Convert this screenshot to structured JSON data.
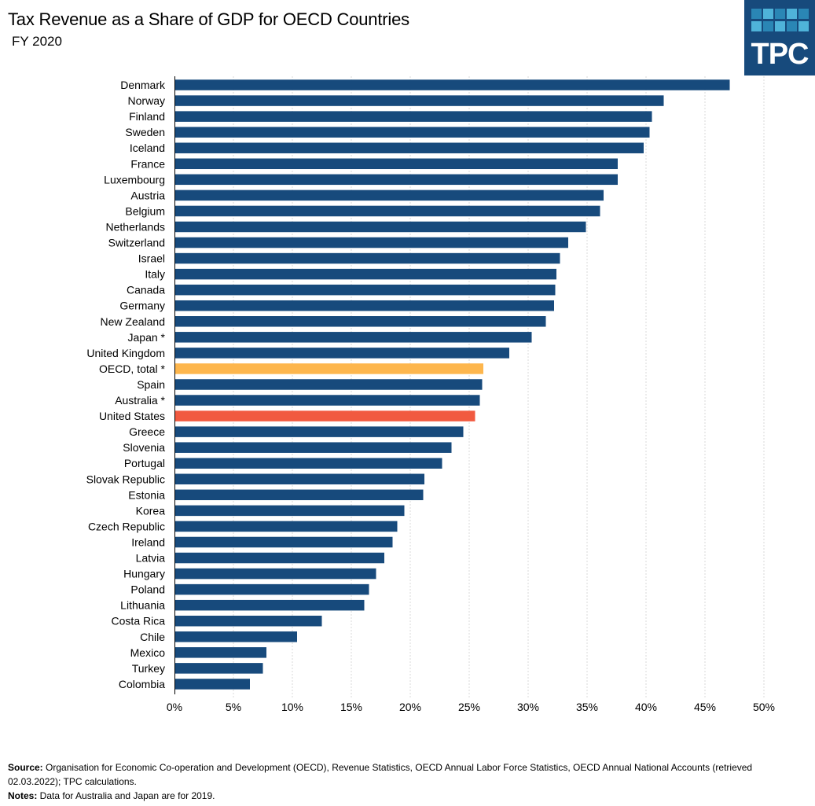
{
  "header": {
    "title": "Tax Revenue as a Share of GDP for OECD Countries",
    "subtitle": "FY 2020",
    "logo_text": "TPC"
  },
  "colors": {
    "bar_default": "#174a7c",
    "bar_oecd": "#fdb64d",
    "bar_us": "#f15a40",
    "logo_bg": "#174a7c",
    "logo_squares": [
      "#2a86b5",
      "#4fb3d9"
    ]
  },
  "chart_data": {
    "type": "bar",
    "orientation": "horizontal",
    "title": "Tax Revenue as a Share of GDP for OECD Countries",
    "subtitle": "FY 2020",
    "xlabel": "",
    "ylabel": "",
    "xlim": [
      0,
      50
    ],
    "x_ticks": [
      "0%",
      "5%",
      "10%",
      "15%",
      "20%",
      "25%",
      "30%",
      "35%",
      "40%",
      "45%",
      "50%"
    ],
    "grid": "vertical dotted",
    "unit": "percent of GDP",
    "categories": [
      "Denmark",
      "Norway",
      "Finland",
      "Sweden",
      "Iceland",
      "France",
      "Luxembourg",
      "Austria",
      "Belgium",
      "Netherlands",
      "Switzerland",
      "Israel",
      "Italy",
      "Canada",
      "Germany",
      "New Zealand",
      "Japan *",
      "United Kingdom",
      "OECD, total *",
      "Spain",
      "Australia *",
      "United States",
      "Greece",
      "Slovenia",
      "Portugal",
      "Slovak Republic",
      "Estonia",
      "Korea",
      "Czech Republic",
      "Ireland",
      "Latvia",
      "Hungary",
      "Poland",
      "Lithuania",
      "Costa Rica",
      "Chile",
      "Mexico",
      "Turkey",
      "Colombia"
    ],
    "values": [
      47.1,
      41.5,
      40.5,
      40.3,
      39.8,
      37.6,
      37.6,
      36.4,
      36.1,
      34.9,
      33.4,
      32.7,
      32.4,
      32.3,
      32.2,
      31.5,
      30.3,
      28.4,
      26.2,
      26.1,
      25.9,
      25.5,
      24.5,
      23.5,
      22.7,
      21.2,
      21.1,
      19.5,
      18.9,
      18.5,
      17.8,
      17.1,
      16.5,
      16.1,
      12.5,
      10.4,
      7.8,
      7.5,
      6.4
    ],
    "highlights": {
      "OECD, total *": "oecd",
      "United States": "us"
    }
  },
  "footer": {
    "source_label": "Source:",
    "source_text": " Organisation for Economic Co-operation and Development (OECD), Revenue Statistics, OECD Annual Labor Force Statistics, OECD Annual National Accounts (retrieved 02.03.2022); TPC calculations.",
    "notes_label": "Notes:",
    "notes_text": " Data  for Australia and Japan are for 2019."
  }
}
